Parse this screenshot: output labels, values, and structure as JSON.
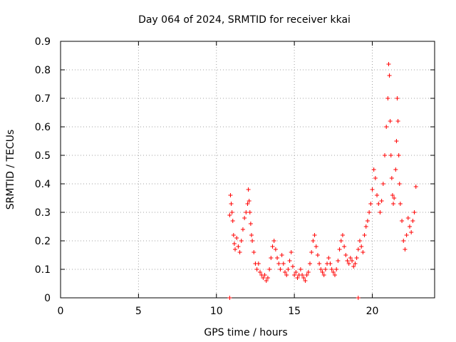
{
  "chart_data": {
    "type": "scatter",
    "title": "Day 064 of 2024, SRMTID for receiver kkai",
    "xlabel": "GPS time / hours",
    "ylabel": "SRMTID / TECUs",
    "xlim": [
      0,
      24
    ],
    "ylim": [
      0,
      0.9
    ],
    "xticks": [
      0,
      5,
      10,
      15,
      20
    ],
    "yticks": [
      0,
      0.1,
      0.2,
      0.3,
      0.4,
      0.5,
      0.6,
      0.7,
      0.8,
      0.9
    ],
    "xtick_labels": [
      "0",
      "5",
      "10",
      "15",
      "20"
    ],
    "ytick_labels": [
      "0",
      "0.1",
      "0.2",
      "0.3",
      "0.4",
      "0.5",
      "0.6",
      "0.7",
      "0.8",
      "0.9"
    ],
    "grid": true,
    "marker": "+",
    "color": "#ff0000",
    "series": [
      {
        "name": "SRMTID",
        "x": [
          10.85,
          10.9,
          10.95,
          11.0,
          11.05,
          11.1,
          11.15,
          11.2,
          11.3,
          11.4,
          11.5,
          11.6,
          11.7,
          11.8,
          11.9,
          12.0,
          12.05,
          12.1,
          12.15,
          12.2,
          12.25,
          12.3,
          12.4,
          12.5,
          12.6,
          12.7,
          12.8,
          12.9,
          13.0,
          13.1,
          13.2,
          13.3,
          13.4,
          13.5,
          13.6,
          13.7,
          13.8,
          13.9,
          14.0,
          14.1,
          14.2,
          14.3,
          14.4,
          14.5,
          14.6,
          14.7,
          14.8,
          14.9,
          15.0,
          15.1,
          15.2,
          15.3,
          15.4,
          15.5,
          15.6,
          15.7,
          15.8,
          15.9,
          16.0,
          16.1,
          16.2,
          16.3,
          16.4,
          16.5,
          16.6,
          16.7,
          16.8,
          16.9,
          17.0,
          17.1,
          17.2,
          17.3,
          17.4,
          17.5,
          17.6,
          17.7,
          17.8,
          17.9,
          18.0,
          18.1,
          18.2,
          18.3,
          18.4,
          18.5,
          18.6,
          18.7,
          18.8,
          18.9,
          19.0,
          19.1,
          19.2,
          19.3,
          19.4,
          19.5,
          19.6,
          19.7,
          19.8,
          19.9,
          20.0,
          20.1,
          20.2,
          20.3,
          20.4,
          20.5,
          20.6,
          20.7,
          20.8,
          20.9,
          21.0,
          21.05,
          21.1,
          21.15,
          21.2,
          21.25,
          21.3,
          21.35,
          21.4,
          21.5,
          21.55,
          21.6,
          21.65,
          21.7,
          21.75,
          21.8,
          21.9,
          22.0,
          22.1,
          22.2,
          22.3,
          22.4,
          22.5,
          22.6,
          22.7,
          22.8,
          10.85,
          19.1
        ],
        "y": [
          0.29,
          0.36,
          0.33,
          0.3,
          0.27,
          0.22,
          0.19,
          0.17,
          0.21,
          0.18,
          0.16,
          0.2,
          0.24,
          0.28,
          0.3,
          0.33,
          0.38,
          0.34,
          0.3,
          0.26,
          0.22,
          0.2,
          0.16,
          0.12,
          0.1,
          0.12,
          0.09,
          0.08,
          0.07,
          0.08,
          0.06,
          0.07,
          0.1,
          0.14,
          0.18,
          0.2,
          0.17,
          0.14,
          0.12,
          0.1,
          0.15,
          0.12,
          0.09,
          0.08,
          0.1,
          0.13,
          0.16,
          0.11,
          0.08,
          0.09,
          0.07,
          0.08,
          0.1,
          0.08,
          0.07,
          0.06,
          0.08,
          0.09,
          0.12,
          0.16,
          0.2,
          0.22,
          0.18,
          0.15,
          0.12,
          0.1,
          0.09,
          0.08,
          0.1,
          0.12,
          0.14,
          0.12,
          0.1,
          0.09,
          0.08,
          0.1,
          0.13,
          0.17,
          0.2,
          0.22,
          0.18,
          0.15,
          0.13,
          0.12,
          0.14,
          0.13,
          0.11,
          0.12,
          0.14,
          0.17,
          0.2,
          0.18,
          0.16,
          0.22,
          0.25,
          0.27,
          0.3,
          0.33,
          0.38,
          0.45,
          0.42,
          0.36,
          0.33,
          0.3,
          0.34,
          0.4,
          0.5,
          0.6,
          0.7,
          0.82,
          0.78,
          0.62,
          0.5,
          0.42,
          0.36,
          0.33,
          0.35,
          0.45,
          0.55,
          0.7,
          0.62,
          0.5,
          0.4,
          0.33,
          0.27,
          0.2,
          0.17,
          0.22,
          0.28,
          0.25,
          0.23,
          0.27,
          0.3,
          0.39,
          0.0,
          0.0
        ]
      }
    ]
  }
}
